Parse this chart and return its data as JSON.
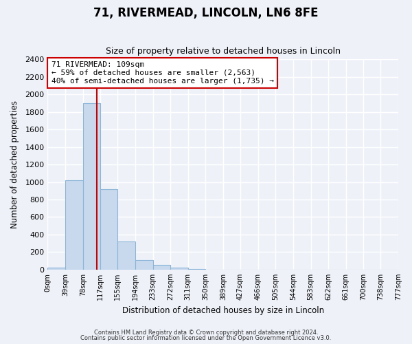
{
  "title": "71, RIVERMEAD, LINCOLN, LN6 8FE",
  "subtitle": "Size of property relative to detached houses in Lincoln",
  "xlabel": "Distribution of detached houses by size in Lincoln",
  "ylabel": "Number of detached properties",
  "bar_color": "#c8d9ee",
  "bar_edge_color": "#8ab4d8",
  "bar_heights": [
    20,
    1020,
    1900,
    920,
    320,
    110,
    50,
    20,
    5,
    0,
    0,
    0,
    0,
    0,
    0,
    0,
    0,
    0,
    0,
    0
  ],
  "bin_edges": [
    0,
    39,
    78,
    117,
    155,
    194,
    233,
    272,
    311,
    350,
    389,
    427,
    466,
    505,
    544,
    583,
    622,
    661,
    700,
    738,
    777
  ],
  "tick_labels": [
    "0sqm",
    "39sqm",
    "78sqm",
    "117sqm",
    "155sqm",
    "194sqm",
    "233sqm",
    "272sqm",
    "311sqm",
    "350sqm",
    "389sqm",
    "427sqm",
    "466sqm",
    "505sqm",
    "544sqm",
    "583sqm",
    "622sqm",
    "661sqm",
    "700sqm",
    "738sqm",
    "777sqm"
  ],
  "ylim": [
    0,
    2400
  ],
  "yticks": [
    0,
    200,
    400,
    600,
    800,
    1000,
    1200,
    1400,
    1600,
    1800,
    2000,
    2200,
    2400
  ],
  "vline_x": 109,
  "vline_color": "#cc0000",
  "annotation_title": "71 RIVERMEAD: 109sqm",
  "annotation_line1": "← 59% of detached houses are smaller (2,563)",
  "annotation_line2": "40% of semi-detached houses are larger (1,735) →",
  "annotation_box_edge": "#cc0000",
  "footer1": "Contains HM Land Registry data © Crown copyright and database right 2024.",
  "footer2": "Contains public sector information licensed under the Open Government Licence v3.0.",
  "background_color": "#eef2f8",
  "grid_color": "#ffffff",
  "figsize": [
    6.0,
    5.0
  ],
  "dpi": 100
}
